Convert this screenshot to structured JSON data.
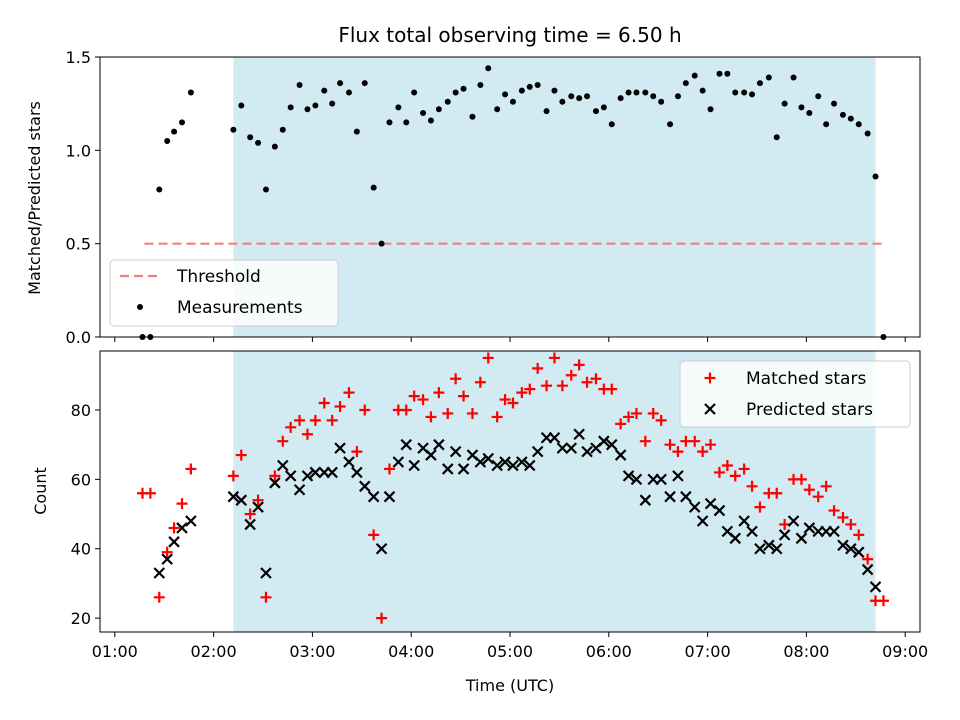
{
  "chart_data": [
    {
      "type": "scatter",
      "title": "Flux total observing time = 6.50 h",
      "xlabel": "",
      "ylabel": "Matched/Predicted stars",
      "x_unit": "hours UTC",
      "xlim": [
        0.85,
        9.15
      ],
      "ylim": [
        0,
        1.5
      ],
      "yticks": [
        0.0,
        0.5,
        1.0,
        1.5
      ],
      "ytick_labels": [
        "0.0",
        "0.5",
        "1.0",
        "1.5"
      ],
      "observing_span": [
        2.2,
        8.7
      ],
      "observing_span_color": "#add8e6",
      "legend_position": "lower left",
      "threshold": {
        "name": "Threshold",
        "value": 0.5,
        "x_range": [
          1.3,
          8.77
        ],
        "color": "#f08080"
      },
      "measurements": {
        "name": "Measurements",
        "color": "#000000",
        "x": [
          1.28,
          1.36,
          1.45,
          1.53,
          1.6,
          1.68,
          1.77,
          2.2,
          2.28,
          2.37,
          2.45,
          2.53,
          2.62,
          2.7,
          2.78,
          2.87,
          2.95,
          3.03,
          3.12,
          3.2,
          3.28,
          3.37,
          3.45,
          3.53,
          3.62,
          3.7,
          3.78,
          3.87,
          3.95,
          4.03,
          4.12,
          4.2,
          4.28,
          4.37,
          4.45,
          4.53,
          4.62,
          4.7,
          4.78,
          4.87,
          4.95,
          5.03,
          5.12,
          5.2,
          5.28,
          5.37,
          5.45,
          5.53,
          5.62,
          5.7,
          5.78,
          5.87,
          5.95,
          6.03,
          6.12,
          6.2,
          6.28,
          6.37,
          6.45,
          6.53,
          6.62,
          6.7,
          6.78,
          6.87,
          6.95,
          7.03,
          7.12,
          7.2,
          7.28,
          7.37,
          7.45,
          7.53,
          7.62,
          7.7,
          7.78,
          7.87,
          7.95,
          8.03,
          8.12,
          8.2,
          8.28,
          8.37,
          8.45,
          8.53,
          8.62,
          8.7,
          8.78
        ],
        "y": [
          0.0,
          0.0,
          0.79,
          1.05,
          1.1,
          1.15,
          1.31,
          1.11,
          1.24,
          1.07,
          1.04,
          0.79,
          1.02,
          1.11,
          1.23,
          1.35,
          1.22,
          1.24,
          1.32,
          1.25,
          1.36,
          1.31,
          1.1,
          1.36,
          0.8,
          0.5,
          1.15,
          1.23,
          1.15,
          1.31,
          1.2,
          1.16,
          1.22,
          1.26,
          1.31,
          1.33,
          1.18,
          1.35,
          1.44,
          1.22,
          1.3,
          1.26,
          1.32,
          1.34,
          1.35,
          1.21,
          1.32,
          1.26,
          1.29,
          1.28,
          1.29,
          1.21,
          1.23,
          1.14,
          1.28,
          1.31,
          1.31,
          1.31,
          1.29,
          1.26,
          1.14,
          1.29,
          1.36,
          1.4,
          1.32,
          1.22,
          1.41,
          1.41,
          1.31,
          1.31,
          1.3,
          1.36,
          1.39,
          1.07,
          1.25,
          1.39,
          1.23,
          1.2,
          1.29,
          1.14,
          1.25,
          1.19,
          1.17,
          1.14,
          1.09,
          0.86,
          0.0
        ]
      }
    },
    {
      "type": "scatter",
      "title": "",
      "xlabel": "Time (UTC)",
      "ylabel": "Count",
      "x_unit": "hours UTC",
      "xlim": [
        0.85,
        9.15
      ],
      "ylim": [
        16,
        97
      ],
      "yticks": [
        20,
        40,
        60,
        80
      ],
      "ytick_labels": [
        "20",
        "40",
        "60",
        "80"
      ],
      "xticks": [
        1,
        2,
        3,
        4,
        5,
        6,
        7,
        8,
        9
      ],
      "xtick_labels": [
        "01:00",
        "02:00",
        "03:00",
        "04:00",
        "05:00",
        "06:00",
        "07:00",
        "08:00",
        "09:00"
      ],
      "observing_span": [
        2.2,
        8.7
      ],
      "observing_span_color": "#add8e6",
      "legend_position": "upper right",
      "series": [
        {
          "name": "Matched stars",
          "marker": "+",
          "color": "#ff0000",
          "x": [
            1.28,
            1.36,
            1.45,
            1.53,
            1.6,
            1.68,
            1.77,
            2.2,
            2.28,
            2.37,
            2.45,
            2.53,
            2.62,
            2.7,
            2.78,
            2.87,
            2.95,
            3.03,
            3.12,
            3.2,
            3.28,
            3.37,
            3.45,
            3.53,
            3.62,
            3.7,
            3.78,
            3.87,
            3.95,
            4.03,
            4.12,
            4.2,
            4.28,
            4.37,
            4.45,
            4.53,
            4.62,
            4.7,
            4.78,
            4.87,
            4.95,
            5.03,
            5.12,
            5.2,
            5.28,
            5.37,
            5.45,
            5.53,
            5.62,
            5.7,
            5.78,
            5.87,
            5.95,
            6.03,
            6.12,
            6.2,
            6.28,
            6.37,
            6.45,
            6.53,
            6.62,
            6.7,
            6.78,
            6.87,
            6.95,
            7.03,
            7.12,
            7.2,
            7.28,
            7.37,
            7.45,
            7.53,
            7.62,
            7.7,
            7.78,
            7.87,
            7.95,
            8.03,
            8.12,
            8.2,
            8.28,
            8.37,
            8.45,
            8.53,
            8.62,
            8.7,
            8.78
          ],
          "y": [
            56,
            56,
            26,
            39,
            46,
            53,
            63,
            61,
            67,
            50,
            54,
            26,
            61,
            71,
            75,
            77,
            73,
            77,
            82,
            77,
            81,
            85,
            68,
            80,
            44,
            20,
            63,
            80,
            80,
            84,
            83,
            78,
            85,
            79,
            89,
            84,
            79,
            88,
            95,
            78,
            83,
            82,
            85,
            86,
            92,
            87,
            95,
            87,
            90,
            93,
            88,
            89,
            86,
            86,
            76,
            78,
            79,
            71,
            79,
            77,
            70,
            68,
            71,
            71,
            68,
            70,
            62,
            64,
            61,
            63,
            58,
            52,
            56,
            56,
            47,
            60,
            60,
            57,
            55,
            58,
            51,
            49,
            47,
            44,
            37,
            25,
            25
          ]
        },
        {
          "name": "Predicted stars",
          "marker": "x",
          "color": "#000000",
          "x": [
            1.45,
            1.53,
            1.6,
            1.68,
            1.77,
            2.2,
            2.28,
            2.37,
            2.45,
            2.53,
            2.62,
            2.7,
            2.78,
            2.87,
            2.95,
            3.03,
            3.12,
            3.2,
            3.28,
            3.37,
            3.45,
            3.53,
            3.62,
            3.7,
            3.78,
            3.87,
            3.95,
            4.03,
            4.12,
            4.2,
            4.28,
            4.37,
            4.45,
            4.53,
            4.62,
            4.7,
            4.78,
            4.87,
            4.95,
            5.03,
            5.12,
            5.2,
            5.28,
            5.37,
            5.45,
            5.53,
            5.62,
            5.7,
            5.78,
            5.87,
            5.95,
            6.03,
            6.12,
            6.2,
            6.28,
            6.37,
            6.45,
            6.53,
            6.62,
            6.7,
            6.78,
            6.87,
            6.95,
            7.03,
            7.12,
            7.2,
            7.28,
            7.37,
            7.45,
            7.53,
            7.62,
            7.7,
            7.78,
            7.87,
            7.95,
            8.03,
            8.12,
            8.2,
            8.28,
            8.37,
            8.45,
            8.53,
            8.62,
            8.7
          ],
          "y": [
            33,
            37,
            42,
            46,
            48,
            55,
            54,
            47,
            52,
            33,
            59,
            64,
            61,
            57,
            61,
            62,
            62,
            62,
            69,
            65,
            62,
            58,
            55,
            40,
            55,
            65,
            70,
            64,
            69,
            67,
            70,
            63,
            68,
            63,
            67,
            65,
            66,
            64,
            65,
            64,
            65,
            64,
            68,
            72,
            72,
            69,
            69,
            73,
            68,
            69,
            71,
            70,
            67,
            61,
            60,
            54,
            60,
            60,
            55,
            61,
            55,
            52,
            48,
            53,
            51,
            45,
            43,
            48,
            45,
            40,
            41,
            40,
            44,
            48,
            43,
            46,
            45,
            45,
            45,
            41,
            40,
            39,
            34,
            29
          ]
        }
      ]
    }
  ]
}
